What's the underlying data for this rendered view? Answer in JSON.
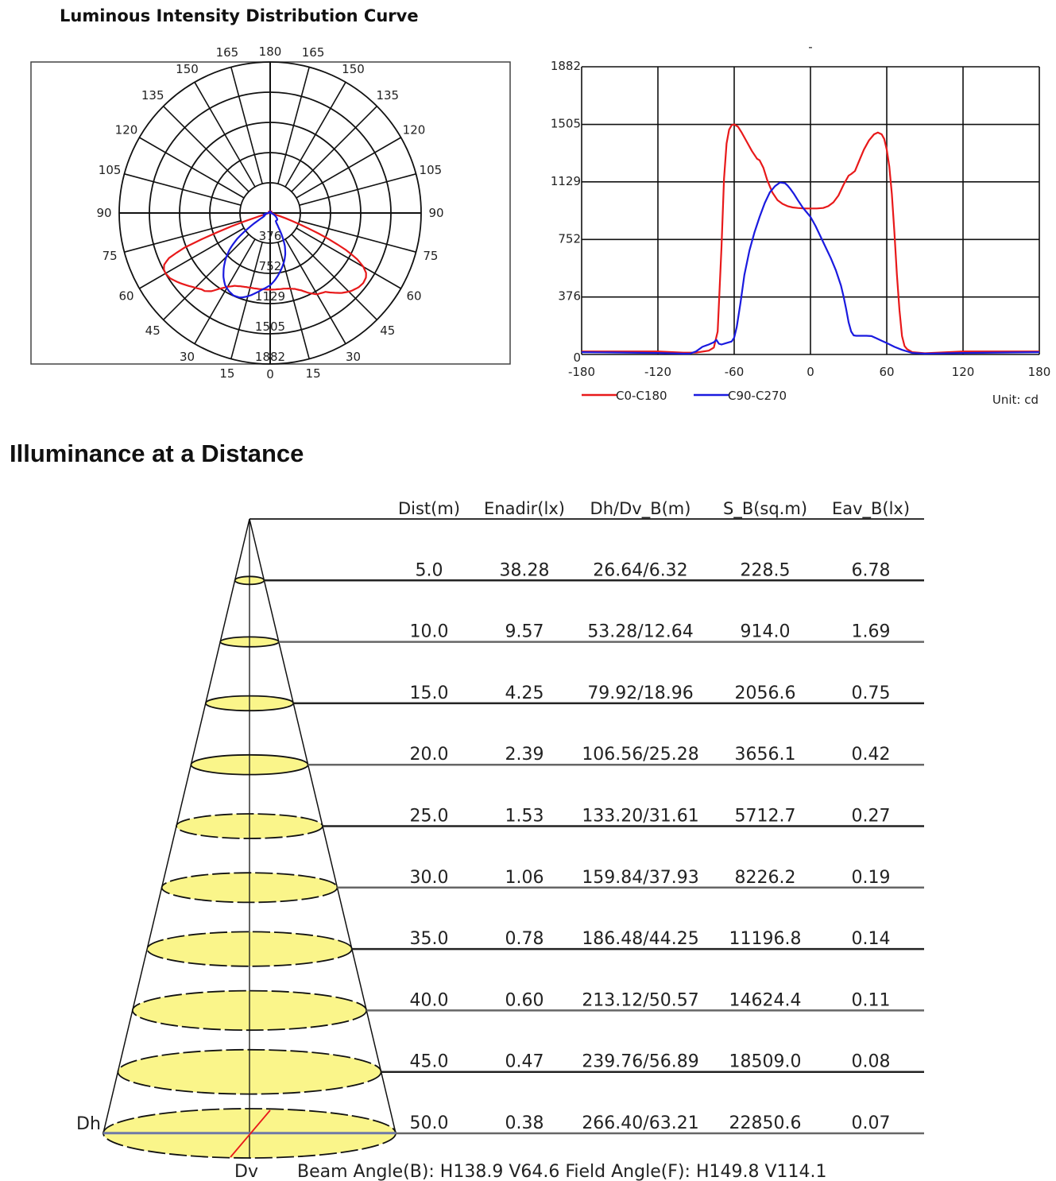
{
  "header": {
    "title": "Luminous Intensity Distribution Curve",
    "section_title": "Illuminance at a Distance"
  },
  "chart_data": [
    {
      "type": "polar",
      "angle_labels_left": [
        "180",
        "165",
        "150",
        "135",
        "120",
        "105",
        "90",
        "75",
        "60",
        "45",
        "30",
        "15",
        "0"
      ],
      "angle_labels_right": [
        "165",
        "150",
        "135",
        "120",
        "105",
        "90",
        "75",
        "60",
        "45",
        "30",
        "15"
      ],
      "ring_labels": [
        "376",
        "752",
        "1129",
        "1505",
        "1882"
      ],
      "rmax": 1882,
      "series": [
        {
          "name": "C0-C180",
          "color": "#e8191a"
        },
        {
          "name": "C90-C270",
          "color": "#1a1adf"
        }
      ]
    },
    {
      "type": "line",
      "title": "-",
      "xlim": [
        -180,
        180
      ],
      "ylim": [
        0,
        1882
      ],
      "x_ticks": [
        "-180",
        "-120",
        "-60",
        "0",
        "60",
        "120",
        "180"
      ],
      "y_ticks": [
        "0",
        "376",
        "752",
        "1129",
        "1505",
        "1882"
      ],
      "grid": true,
      "unit_label": "Unit: cd",
      "legend_position": "bottom-left",
      "series": [
        {
          "name": "C0-C180",
          "color": "#e8191a",
          "x": [
            -180,
            -120,
            -100,
            -90,
            -80,
            -76,
            -73,
            -70,
            -68,
            -66,
            -64,
            -62,
            -60,
            -57,
            -54,
            -50,
            -46,
            -42,
            -40,
            -37,
            -34,
            -30,
            -26,
            -22,
            -18,
            -14,
            -10,
            -5,
            0,
            5,
            10,
            14,
            18,
            22,
            26,
            30,
            32,
            35,
            38,
            42,
            46,
            50,
            53,
            56,
            58,
            60,
            62,
            64,
            66,
            68,
            70,
            72,
            74,
            76,
            80,
            90,
            120,
            180
          ],
          "y": [
            20,
            20,
            12,
            12,
            25,
            45,
            150,
            700,
            1150,
            1380,
            1470,
            1500,
            1505,
            1490,
            1450,
            1390,
            1330,
            1280,
            1270,
            1220,
            1140,
            1060,
            1010,
            985,
            970,
            962,
            958,
            955,
            955,
            955,
            958,
            970,
            995,
            1040,
            1110,
            1170,
            1180,
            1200,
            1260,
            1340,
            1400,
            1440,
            1452,
            1440,
            1410,
            1340,
            1230,
            1050,
            800,
            520,
            290,
            120,
            55,
            35,
            15,
            8,
            20,
            20
          ]
        },
        {
          "name": "C90-C270",
          "color": "#1a1adf",
          "x": [
            -180,
            -120,
            -100,
            -95,
            -90,
            -85,
            -80,
            -76,
            -74,
            -72,
            -70,
            -66,
            -62,
            -60,
            -58,
            -55,
            -52,
            -48,
            -44,
            -40,
            -36,
            -32,
            -28,
            -24,
            -20,
            -18,
            -16,
            -13,
            -10,
            -6,
            -2,
            0,
            4,
            8,
            12,
            16,
            20,
            24,
            26,
            28,
            30,
            32,
            34,
            36,
            40,
            44,
            48,
            52,
            56,
            60,
            66,
            72,
            80,
            90,
            120,
            180
          ],
          "y": [
            15,
            10,
            5,
            5,
            20,
            50,
            65,
            80,
            95,
            70,
            65,
            75,
            85,
            110,
            180,
            340,
            520,
            680,
            800,
            900,
            990,
            1060,
            1100,
            1125,
            1120,
            1105,
            1085,
            1050,
            1010,
            960,
            920,
            900,
            840,
            770,
            700,
            630,
            550,
            450,
            380,
            300,
            210,
            150,
            125,
            122,
            122,
            122,
            120,
            105,
            90,
            75,
            50,
            30,
            10,
            5,
            10,
            15
          ]
        }
      ]
    }
  ],
  "illuminance": {
    "headers": [
      "Dist(m)",
      "Enadir(lx)",
      "Dh/Dv_B(m)",
      "S_B(sq.m)",
      "Eav_B(lx)"
    ],
    "rows": [
      [
        "5.0",
        "38.28",
        "26.64/6.32",
        "228.5",
        "6.78"
      ],
      [
        "10.0",
        "9.57",
        "53.28/12.64",
        "914.0",
        "1.69"
      ],
      [
        "15.0",
        "4.25",
        "79.92/18.96",
        "2056.6",
        "0.75"
      ],
      [
        "20.0",
        "2.39",
        "106.56/25.28",
        "3656.1",
        "0.42"
      ],
      [
        "25.0",
        "1.53",
        "133.20/31.61",
        "5712.7",
        "0.27"
      ],
      [
        "30.0",
        "1.06",
        "159.84/37.93",
        "8226.2",
        "0.19"
      ],
      [
        "35.0",
        "0.78",
        "186.48/44.25",
        "11196.8",
        "0.14"
      ],
      [
        "40.0",
        "0.60",
        "213.12/50.57",
        "14624.4",
        "0.11"
      ],
      [
        "45.0",
        "0.47",
        "239.76/56.89",
        "18509.0",
        "0.08"
      ],
      [
        "50.0",
        "0.38",
        "266.40/63.21",
        "22850.6",
        "0.07"
      ]
    ],
    "dh_label": "Dh",
    "dv_label": "Dv",
    "footer": "Beam Angle(B): H138.9 V64.6  Field Angle(F): H149.8 V114.1",
    "ellipse_fill": "#faf58a"
  }
}
